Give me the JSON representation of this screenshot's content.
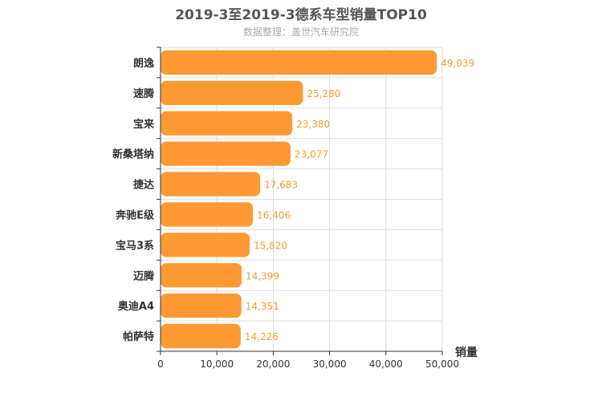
{
  "colors": {
    "bar": "#FF9933",
    "label": "#F0A030",
    "grid": "#dddddd",
    "axis": "#333333",
    "text": "#333333"
  },
  "chart_data": {
    "type": "bar",
    "orientation": "horizontal",
    "title": "2019-3至2019-3德系车型销量TOP10",
    "subtitle": "数据整理：盖世汽车研究院",
    "xlabel": "销量",
    "ylabel": "",
    "xlim": [
      0,
      50000
    ],
    "xticks": [
      0,
      10000,
      20000,
      30000,
      40000,
      50000
    ],
    "xtick_labels": [
      "0",
      "10,000",
      "20,000",
      "30,000",
      "40,000",
      "50,000"
    ],
    "grid": true,
    "categories": [
      "朗逸",
      "速腾",
      "宝来",
      "新桑塔纳",
      "捷达",
      "奔驰E级",
      "宝马3系",
      "迈腾",
      "奥迪A4",
      "帕萨特"
    ],
    "values": [
      49039,
      25280,
      23380,
      23077,
      17683,
      16406,
      15820,
      14399,
      14351,
      14226
    ],
    "value_labels": [
      "49,039",
      "25,280",
      "23,380",
      "23,077",
      "17,683",
      "16,406",
      "15,820",
      "14,399",
      "14,351",
      "14,226"
    ]
  }
}
